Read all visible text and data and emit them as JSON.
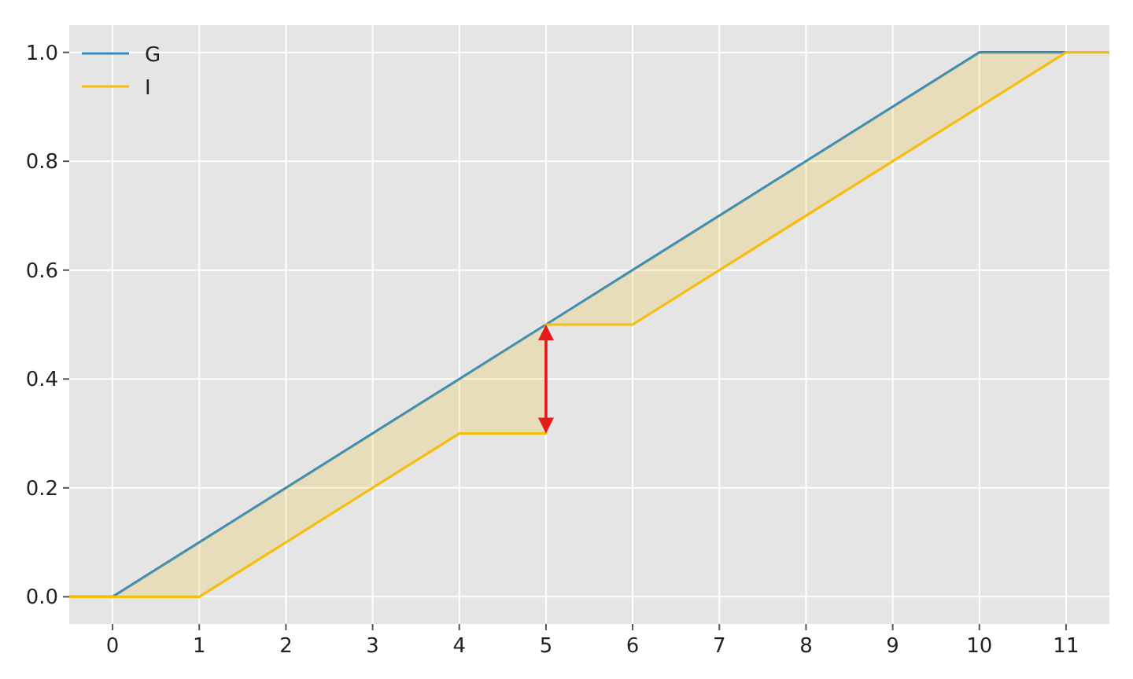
{
  "chart_data": {
    "type": "line",
    "x": [
      -0.5,
      0,
      1,
      4,
      5,
      5,
      6,
      10,
      11,
      11.5
    ],
    "series": [
      {
        "name": "G",
        "color": "#348abd",
        "values": [
          0,
          0,
          0.1,
          0.4,
          0.5,
          0.5,
          0.6,
          1,
          1,
          null
        ]
      },
      {
        "name": "I",
        "color": "#f5be0f",
        "values": [
          0,
          0,
          0,
          0.3,
          0.3,
          0.5,
          0.5,
          0.9,
          1,
          1
        ],
        "lower": [
          0,
          0,
          0,
          0.3,
          0.3,
          0.5,
          0.5,
          0.9,
          1,
          1
        ],
        "upper": [
          0,
          0,
          0.1,
          0.4,
          0.5,
          0.5,
          0.6,
          1,
          1,
          1
        ]
      }
    ],
    "xlim": [
      -0.5,
      11.5
    ],
    "xticks": [
      0,
      1,
      2,
      3,
      4,
      5,
      6,
      7,
      8,
      9,
      10,
      11
    ],
    "ylim": [
      -0.05,
      1.05
    ],
    "yticks": [
      {
        "value": 0,
        "label": "0.0"
      },
      {
        "value": 0.2,
        "label": "0.2"
      },
      {
        "value": 0.4,
        "label": "0.4"
      },
      {
        "value": 0.6,
        "label": "0.6"
      },
      {
        "value": 0.8,
        "label": "0.8"
      },
      {
        "value": 1,
        "label": "1.0"
      }
    ],
    "grid": true,
    "legend": "top left",
    "marker": "none",
    "line_style": "solid"
  }
}
